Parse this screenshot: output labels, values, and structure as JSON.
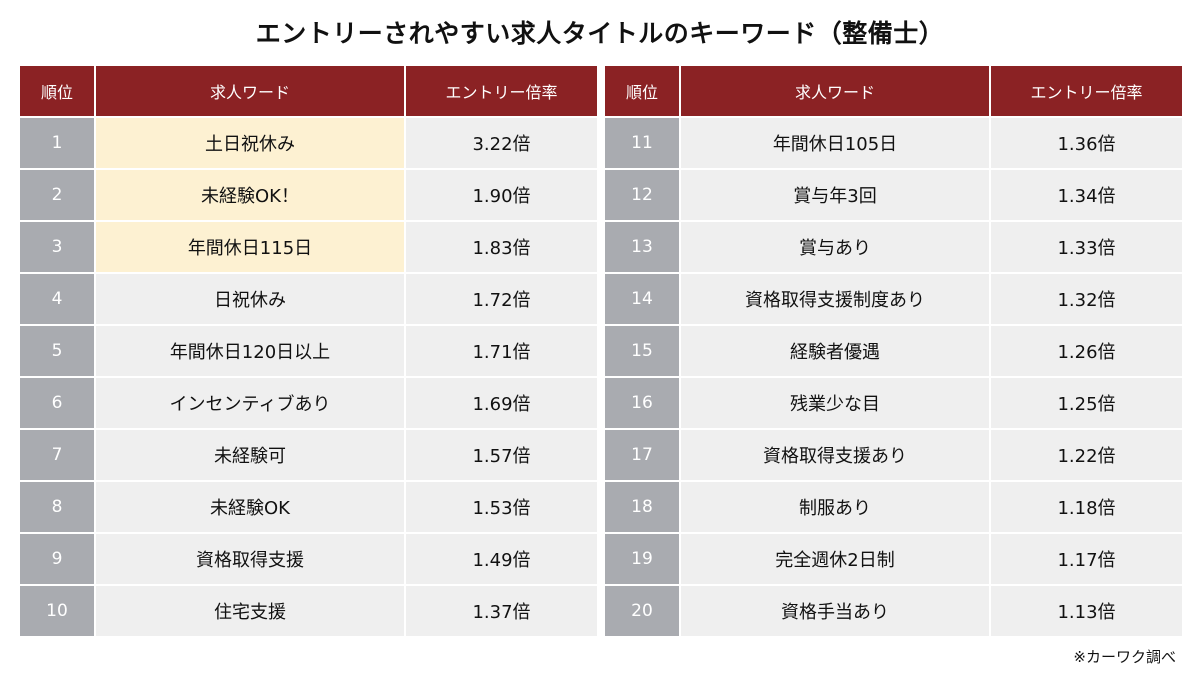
{
  "title": "エントリーされやすい求人タイトルのキーワード（整備士）",
  "source_note": "※カーワク調べ",
  "colors": {
    "header_bg": "#8b2224",
    "rank_bg": "#a9abb0",
    "row_bg": "#efefef",
    "highlight_bg": "#fdf1d2"
  },
  "chart_data": {
    "type": "table",
    "columns": [
      "順位",
      "求人ワード",
      "エントリー倍率"
    ],
    "rows": [
      {
        "rank": "1",
        "keyword": "土日祝休み",
        "ratio": "3.22倍",
        "highlight": true
      },
      {
        "rank": "2",
        "keyword": "未経験OK！",
        "ratio": "1.90倍",
        "highlight": true
      },
      {
        "rank": "3",
        "keyword": "年間休日115日",
        "ratio": "1.83倍",
        "highlight": true
      },
      {
        "rank": "4",
        "keyword": "日祝休み",
        "ratio": "1.72倍",
        "highlight": false
      },
      {
        "rank": "5",
        "keyword": "年間休日120日以上",
        "ratio": "1.71倍",
        "highlight": false
      },
      {
        "rank": "6",
        "keyword": "インセンティブあり",
        "ratio": "1.69倍",
        "highlight": false
      },
      {
        "rank": "7",
        "keyword": "未経験可",
        "ratio": "1.57倍",
        "highlight": false
      },
      {
        "rank": "8",
        "keyword": "未経験OK",
        "ratio": "1.53倍",
        "highlight": false
      },
      {
        "rank": "9",
        "keyword": "資格取得支援",
        "ratio": "1.49倍",
        "highlight": false
      },
      {
        "rank": "10",
        "keyword": "住宅支援",
        "ratio": "1.37倍",
        "highlight": false
      },
      {
        "rank": "11",
        "keyword": "年間休日105日",
        "ratio": "1.36倍",
        "highlight": false
      },
      {
        "rank": "12",
        "keyword": "賞与年3回",
        "ratio": "1.34倍",
        "highlight": false
      },
      {
        "rank": "13",
        "keyword": "賞与あり",
        "ratio": "1.33倍",
        "highlight": false
      },
      {
        "rank": "14",
        "keyword": "資格取得支援制度あり",
        "ratio": "1.32倍",
        "highlight": false
      },
      {
        "rank": "15",
        "keyword": "経験者優遇",
        "ratio": "1.26倍",
        "highlight": false
      },
      {
        "rank": "16",
        "keyword": "残業少な目",
        "ratio": "1.25倍",
        "highlight": false
      },
      {
        "rank": "17",
        "keyword": "資格取得支援あり",
        "ratio": "1.22倍",
        "highlight": false
      },
      {
        "rank": "18",
        "keyword": "制服あり",
        "ratio": "1.18倍",
        "highlight": false
      },
      {
        "rank": "19",
        "keyword": "完全週休2日制",
        "ratio": "1.17倍",
        "highlight": false
      },
      {
        "rank": "20",
        "keyword": "資格手当あり",
        "ratio": "1.13倍",
        "highlight": false
      }
    ]
  }
}
